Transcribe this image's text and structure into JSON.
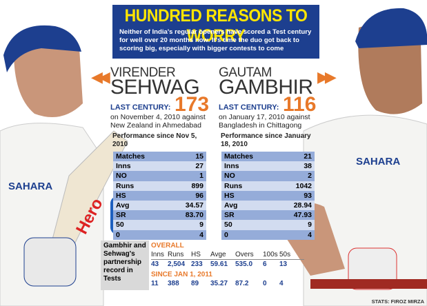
{
  "header": {
    "title": "HUNDRED REASONS TO WORRY",
    "subtitle": "Neither of India's regular openers have scored a Test century for well over 20 months now. It's time the duo got back to scoring big, especially with bigger contests to come"
  },
  "players": [
    {
      "first_name": "VIRENDER",
      "last_name": "SEHWAG",
      "last_century_label": "LAST CENTURY:",
      "last_century_score": "173",
      "last_century_text": "on November 4, 2010 against New Zealand in Ahmedabad",
      "performance_label": "Performance since Nov 5, 2010",
      "stats": [
        [
          "Matches",
          "15"
        ],
        [
          "Inns",
          "27"
        ],
        [
          "NO",
          "1"
        ],
        [
          "Runs",
          "899"
        ],
        [
          "HS",
          "96"
        ],
        [
          "Avg",
          "34.57"
        ],
        [
          "SR",
          "83.70"
        ],
        [
          "50",
          "9"
        ],
        [
          "0",
          "4"
        ]
      ]
    },
    {
      "first_name": "GAUTAM",
      "last_name": "GAMBHIR",
      "last_century_label": "LAST CENTURY:",
      "last_century_score": "116",
      "last_century_text": "on January 17, 2010 against Bangladesh in Chittagong",
      "performance_label": "Performance since January 18, 2010",
      "stats": [
        [
          "Matches",
          "21"
        ],
        [
          "Inns",
          "38"
        ],
        [
          "NO",
          "2"
        ],
        [
          "Runs",
          "1042"
        ],
        [
          "HS",
          "93"
        ],
        [
          "Avg",
          "28.94"
        ],
        [
          "SR",
          "47.93"
        ],
        [
          "50",
          "9"
        ],
        [
          "0",
          "4"
        ]
      ]
    }
  ],
  "partnership": {
    "label": "Gambhir and Sehwag's partnership record in Tests",
    "columns": [
      "Inns",
      "Runs",
      "HS",
      "Avge",
      "Overs",
      "100s",
      "50s"
    ],
    "sections": [
      {
        "heading": "OVERALL",
        "row": [
          "43",
          "2,504",
          "233",
          "59.61",
          "535.0",
          "6",
          "13"
        ]
      },
      {
        "heading": "SINCE JAN 1, 2011",
        "row": [
          "11",
          "388",
          "89",
          "35.27",
          "87.2",
          "0",
          "4"
        ]
      }
    ]
  },
  "photo_text": [
    "SAHARA",
    "SAHARA",
    "Hero"
  ],
  "credit": "STATS: FIROZ MIRZA"
}
